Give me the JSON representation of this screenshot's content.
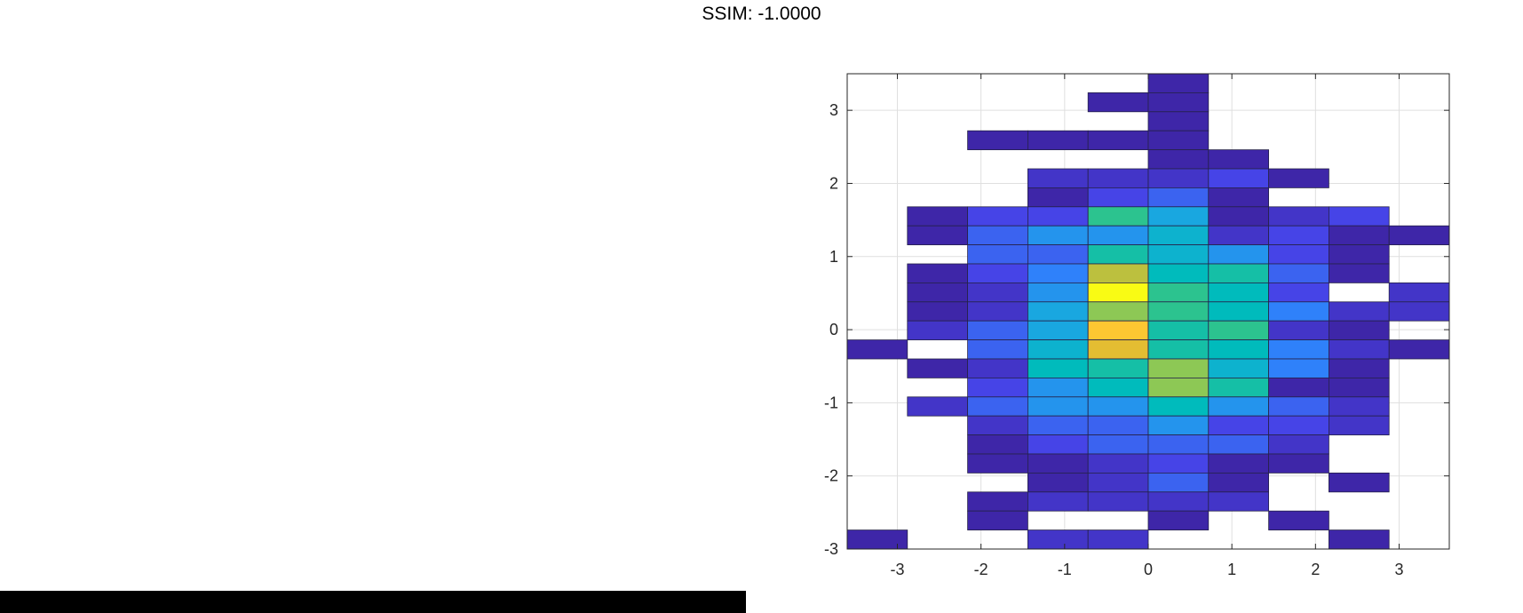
{
  "title": "SSIM: -1.0000",
  "chart_data": {
    "type": "heatmap",
    "title": "SSIM: -1.0000",
    "xlim": [
      -3.6,
      3.6
    ],
    "ylim": [
      -3.0,
      3.5
    ],
    "x_ticks": [
      -3,
      -2,
      -1,
      0,
      1,
      2,
      3
    ],
    "x_tick_labels": [
      "-3",
      "-2",
      "-1",
      "0",
      "1",
      "2",
      "3"
    ],
    "y_ticks": [
      -3,
      -2,
      -1,
      0,
      1,
      2,
      3
    ],
    "y_tick_labels": [
      "-3",
      "-2",
      "-1",
      "0",
      "1",
      "2",
      "3"
    ],
    "grid": true,
    "colormap": "parula",
    "x_edges": [
      -3.6,
      -2.88,
      -2.16,
      -1.44,
      -0.72,
      0.0,
      0.72,
      1.44,
      2.16,
      2.88,
      3.6
    ],
    "y_edges": [
      -3.0,
      -2.74,
      -2.48,
      -2.22,
      -1.96,
      -1.7,
      -1.44,
      -1.18,
      -0.92,
      -0.66,
      -0.4,
      -0.14,
      0.12,
      0.38,
      0.64,
      0.9,
      1.16,
      1.42,
      1.68,
      1.94,
      2.2,
      2.46,
      2.72,
      2.98,
      3.24,
      3.5
    ],
    "counts_rows_top_to_bottom": [
      [
        0,
        0,
        0,
        0,
        0,
        1,
        0,
        0,
        0,
        0
      ],
      [
        0,
        0,
        0,
        0,
        1,
        1,
        0,
        0,
        0,
        0
      ],
      [
        0,
        0,
        0,
        0,
        0,
        1,
        0,
        0,
        0,
        0
      ],
      [
        0,
        0,
        1,
        1,
        1,
        1,
        0,
        0,
        0,
        0
      ],
      [
        0,
        0,
        0,
        0,
        0,
        1,
        1,
        0,
        0,
        0
      ],
      [
        0,
        0,
        0,
        2,
        2,
        2,
        3,
        1,
        0,
        0
      ],
      [
        0,
        0,
        0,
        1,
        3,
        4,
        1,
        0,
        0,
        0
      ],
      [
        0,
        1,
        3,
        3,
        11,
        7,
        1,
        2,
        3,
        0
      ],
      [
        0,
        1,
        4,
        6,
        6,
        8,
        2,
        3,
        1,
        1
      ],
      [
        0,
        0,
        4,
        4,
        10,
        8,
        6,
        3,
        1,
        0
      ],
      [
        0,
        1,
        3,
        5,
        14,
        9,
        10,
        4,
        1,
        0
      ],
      [
        0,
        1,
        2,
        6,
        17,
        11,
        9,
        3,
        0,
        2
      ],
      [
        0,
        1,
        2,
        7,
        13,
        11,
        9,
        5,
        2,
        2
      ],
      [
        0,
        2,
        4,
        7,
        16,
        10,
        11,
        2,
        1,
        0
      ],
      [
        1,
        0,
        4,
        8,
        15,
        10,
        9,
        5,
        2,
        1
      ],
      [
        0,
        1,
        2,
        9,
        10,
        13,
        8,
        5,
        1,
        0
      ],
      [
        0,
        0,
        3,
        6,
        9,
        13,
        10,
        1,
        1,
        0
      ],
      [
        0,
        2,
        4,
        6,
        6,
        9,
        6,
        4,
        2,
        0
      ],
      [
        0,
        0,
        2,
        4,
        4,
        6,
        3,
        3,
        2,
        0
      ],
      [
        0,
        0,
        1,
        3,
        4,
        4,
        4,
        2,
        0,
        0
      ],
      [
        0,
        0,
        1,
        1,
        2,
        3,
        1,
        1,
        0,
        0
      ],
      [
        0,
        0,
        0,
        1,
        2,
        4,
        1,
        0,
        1,
        0
      ],
      [
        0,
        0,
        1,
        2,
        2,
        2,
        2,
        0,
        0,
        0
      ],
      [
        0,
        0,
        1,
        0,
        0,
        1,
        0,
        1,
        0,
        0
      ],
      [
        1,
        0,
        0,
        2,
        2,
        0,
        0,
        0,
        1,
        0
      ]
    ]
  }
}
